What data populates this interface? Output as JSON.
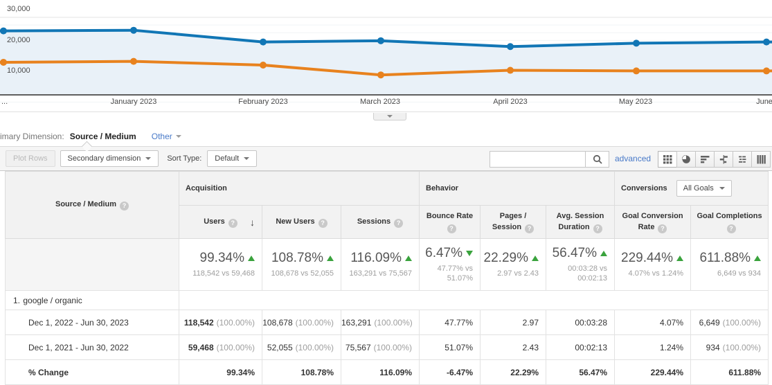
{
  "chart_data": {
    "type": "line",
    "x_tick_labels": [
      "...",
      "January 2023",
      "February 2023",
      "March 2023",
      "April 2023",
      "May 2023",
      "June"
    ],
    "series": [
      {
        "name": "Dec 1, 2022 - Jun 30, 2023",
        "color": "#1176b5",
        "values": [
          25600,
          25800,
          22000,
          22400,
          20500,
          21600,
          22000
        ]
      },
      {
        "name": "Dec 1, 2021 - Jun 30, 2022",
        "color": "#e8821e",
        "values": [
          15400,
          15700,
          14500,
          11300,
          12800,
          12600,
          12600
        ]
      }
    ],
    "ylim": [
      0,
      30000
    ],
    "y_ticks": [
      10000,
      20000,
      30000
    ],
    "y_tick_labels": [
      "10,000",
      "20,000",
      "30,000"
    ],
    "grid": true,
    "legend_position": "none",
    "area_fill": "#e9f1f8"
  },
  "dimension_bar": {
    "label": "imary Dimension:",
    "primary": "Source / Medium",
    "other_label": "Other"
  },
  "toolbar": {
    "plot_rows": "Plot Rows",
    "secondary_dimension": "Secondary dimension",
    "sort_type_label": "Sort Type:",
    "sort_value": "Default",
    "search_value": "",
    "advanced_label": "advanced",
    "view_icons": [
      "table-view",
      "percentage-view",
      "performance-view",
      "comparison-view",
      "term-cloud-view",
      "pivot-view"
    ]
  },
  "table": {
    "dimension_header": "Source / Medium",
    "group_headers": {
      "acquisition": "Acquisition",
      "behavior": "Behavior",
      "conversions": "Conversions",
      "goal_selector": "All Goals"
    },
    "metric_columns": [
      "Users",
      "New Users",
      "Sessions",
      "Bounce Rate",
      "Pages / Session",
      "Avg. Session Duration",
      "Goal Conversion Rate",
      "Goal Completions"
    ],
    "summary": [
      {
        "pct": "99.34%",
        "dir": "up",
        "sub": "118,542 vs 59,468"
      },
      {
        "pct": "108.78%",
        "dir": "up",
        "sub": "108,678 vs 52,055"
      },
      {
        "pct": "116.09%",
        "dir": "up",
        "sub": "163,291 vs 75,567"
      },
      {
        "pct": "6.47%",
        "dir": "down",
        "sub": "47.77% vs 51.07%"
      },
      {
        "pct": "22.29%",
        "dir": "up",
        "sub": "2.97 vs 2.43"
      },
      {
        "pct": "56.47%",
        "dir": "up",
        "sub": "00:03:28 vs 00:02:13"
      },
      {
        "pct": "229.44%",
        "dir": "up",
        "sub": "4.07% vs 1.24%"
      },
      {
        "pct": "611.88%",
        "dir": "up",
        "sub": "6,649 vs 934"
      }
    ],
    "rows": [
      {
        "rank": "1.",
        "source": "google / organic",
        "periods": [
          {
            "label": "Dec 1, 2022 - Jun 30, 2023",
            "values": [
              "118,542 (100.00%)",
              "108,678 (100.00%)",
              "163,291 (100.00%)",
              "47.77%",
              "2.97",
              "00:03:28",
              "4.07%",
              "6,649 (100.00%)"
            ]
          },
          {
            "label": "Dec 1, 2021 - Jun 30, 2022",
            "values": [
              "59,468 (100.00%)",
              "52,055 (100.00%)",
              "75,567 (100.00%)",
              "51.07%",
              "2.43",
              "00:02:13",
              "1.24%",
              "934 (100.00%)"
            ]
          }
        ],
        "change": {
          "label": "% Change",
          "values": [
            "99.34%",
            "108.78%",
            "116.09%",
            "-6.47%",
            "22.29%",
            "56.47%",
            "229.44%",
            "611.88%"
          ]
        }
      }
    ]
  }
}
